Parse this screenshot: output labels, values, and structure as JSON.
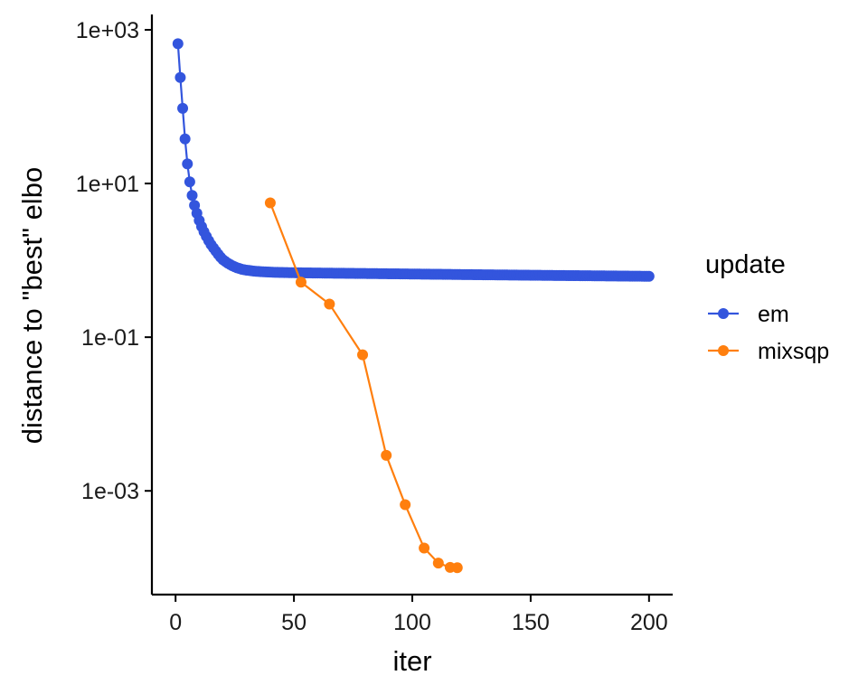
{
  "chart_data": {
    "type": "line",
    "xlabel": "iter",
    "ylabel": "distance to \"best\" elbo",
    "xlim": [
      -10,
      210
    ],
    "ylim_log10": [
      -4.35,
      3.2
    ],
    "yscale": "log10",
    "x_ticks": [
      0,
      50,
      100,
      150,
      200
    ],
    "x_tick_labels": [
      "0",
      "50",
      "100",
      "150",
      "200"
    ],
    "y_ticks_log10": [
      3,
      1,
      -1,
      -3
    ],
    "y_tick_labels": [
      "1e+03",
      "1e+01",
      "1e-01",
      "1e-03"
    ],
    "grid": false,
    "legend": {
      "title": "update",
      "position": "right",
      "entries": [
        "em",
        "mixsqp"
      ]
    },
    "series": [
      {
        "name": "em",
        "color": "#3355dd",
        "points": [
          [
            1,
            660
          ],
          [
            2,
            240
          ],
          [
            3,
            95
          ],
          [
            4,
            38
          ],
          [
            5,
            18
          ],
          [
            6,
            10.5
          ],
          [
            7,
            7.0
          ],
          [
            8,
            5.2
          ],
          [
            9,
            4.1
          ],
          [
            10,
            3.3
          ],
          [
            11,
            2.75
          ],
          [
            12,
            2.35
          ],
          [
            13,
            2.05
          ],
          [
            14,
            1.8
          ],
          [
            15,
            1.6
          ],
          [
            16,
            1.45
          ],
          [
            17,
            1.32
          ],
          [
            18,
            1.2
          ],
          [
            19,
            1.1
          ],
          [
            20,
            1.02
          ],
          [
            22,
            0.92
          ],
          [
            24,
            0.85
          ],
          [
            26,
            0.8
          ],
          [
            28,
            0.765
          ],
          [
            30,
            0.745
          ],
          [
            33,
            0.725
          ],
          [
            36,
            0.712
          ],
          [
            40,
            0.702
          ],
          [
            45,
            0.695
          ],
          [
            50,
            0.69
          ],
          [
            60,
            0.684
          ],
          [
            70,
            0.679
          ],
          [
            80,
            0.674
          ],
          [
            90,
            0.669
          ],
          [
            100,
            0.664
          ],
          [
            110,
            0.659
          ],
          [
            120,
            0.654
          ],
          [
            130,
            0.649
          ],
          [
            140,
            0.645
          ],
          [
            150,
            0.64
          ],
          [
            160,
            0.636
          ],
          [
            170,
            0.632
          ],
          [
            180,
            0.628
          ],
          [
            190,
            0.624
          ],
          [
            200,
            0.62
          ]
        ]
      },
      {
        "name": "mixsqp",
        "color": "#ff7f0e",
        "points": [
          [
            40,
            5.6
          ],
          [
            53,
            0.52
          ],
          [
            65,
            0.27
          ],
          [
            79,
            0.059
          ],
          [
            89,
            0.0029
          ],
          [
            97,
            0.00066
          ],
          [
            105,
            0.00018
          ],
          [
            111,
            0.000115
          ],
          [
            116,
            0.000101
          ],
          [
            119,
            0.0001
          ]
        ]
      }
    ]
  }
}
